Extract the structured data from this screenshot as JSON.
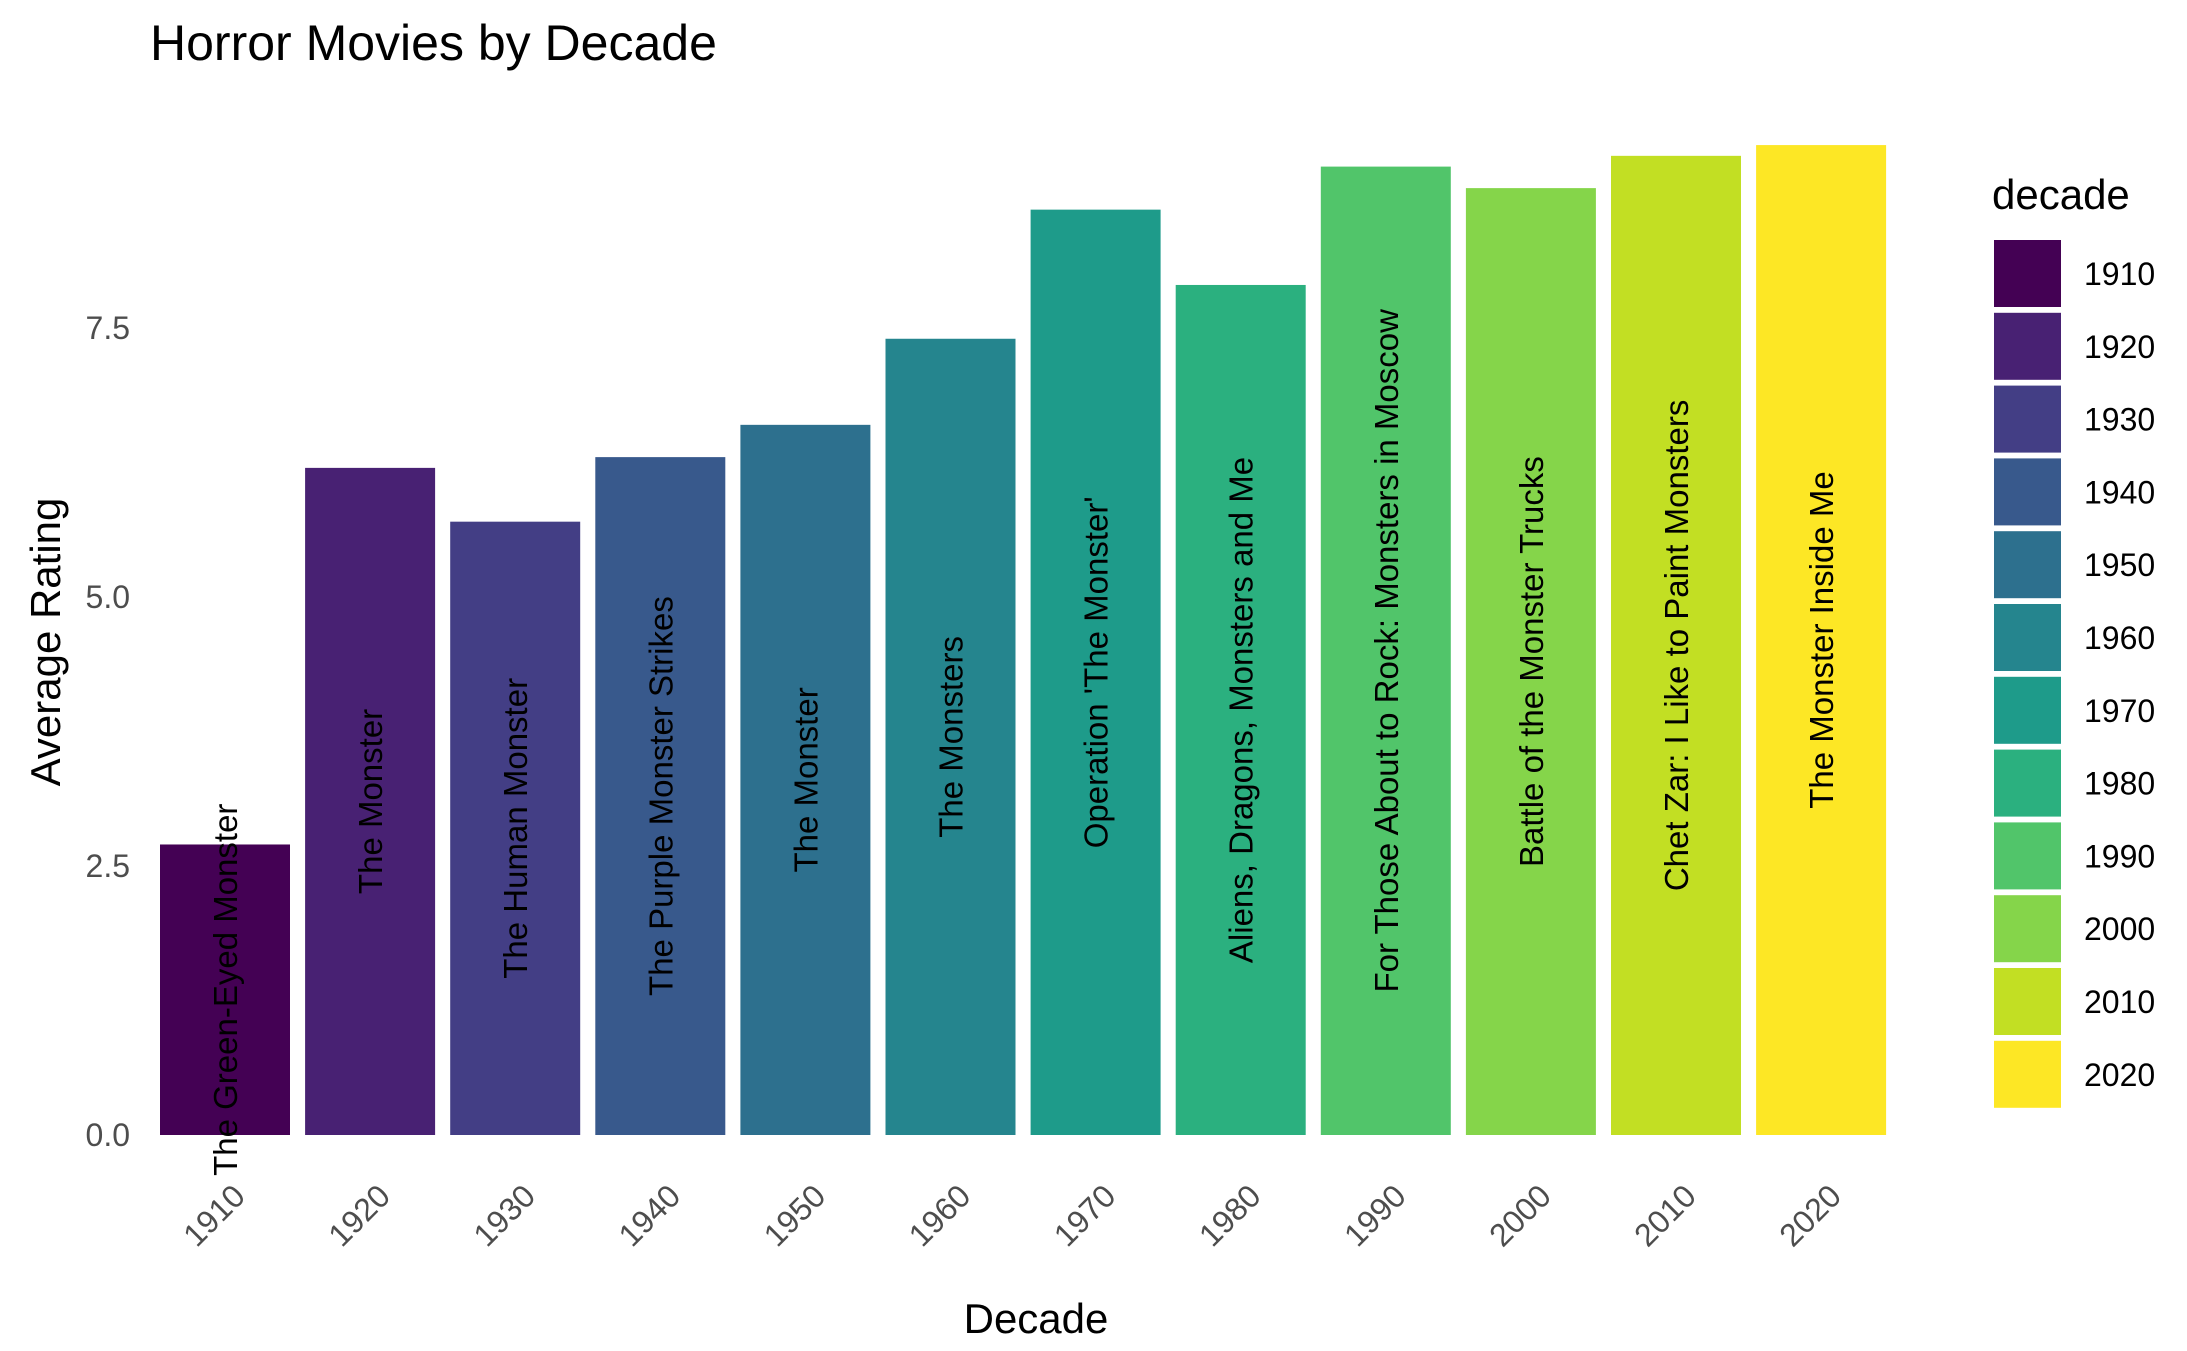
{
  "chart_data": {
    "type": "bar",
    "title": "Horror Movies by Decade",
    "xlabel": "Decade",
    "ylabel": "Average Rating",
    "ylim": [
      0,
      9.5
    ],
    "yticks": [
      "0.0",
      "2.5",
      "5.0",
      "7.5"
    ],
    "grid": false,
    "legend": {
      "title": "decade",
      "placement": "right"
    },
    "categories": [
      "1910",
      "1920",
      "1930",
      "1940",
      "1950",
      "1960",
      "1970",
      "1980",
      "1990",
      "2000",
      "2010",
      "2020"
    ],
    "values": [
      2.7,
      6.2,
      5.7,
      6.3,
      6.6,
      7.4,
      8.6,
      7.9,
      9.0,
      8.8,
      9.1,
      9.2
    ],
    "bar_labels": [
      "The Green-Eyed Monster",
      "The Monster",
      "The Human Monster",
      "The Purple Monster Strikes",
      "The Monster",
      "The Monsters",
      "Operation 'The Monster'",
      "Aliens, Dragons, Monsters and Me",
      "For Those About to Rock: Monsters in Moscow",
      "Battle of the Monster Trucks",
      "Chet Zar: I Like to Paint Monsters",
      "The Monster Inside Me"
    ],
    "colors": [
      "#440154",
      "#482173",
      "#433E85",
      "#38598C",
      "#2D708E",
      "#25858E",
      "#1E9B8A",
      "#2BB07F",
      "#51C56A",
      "#85D54A",
      "#C2DF23",
      "#FDE725"
    ]
  }
}
